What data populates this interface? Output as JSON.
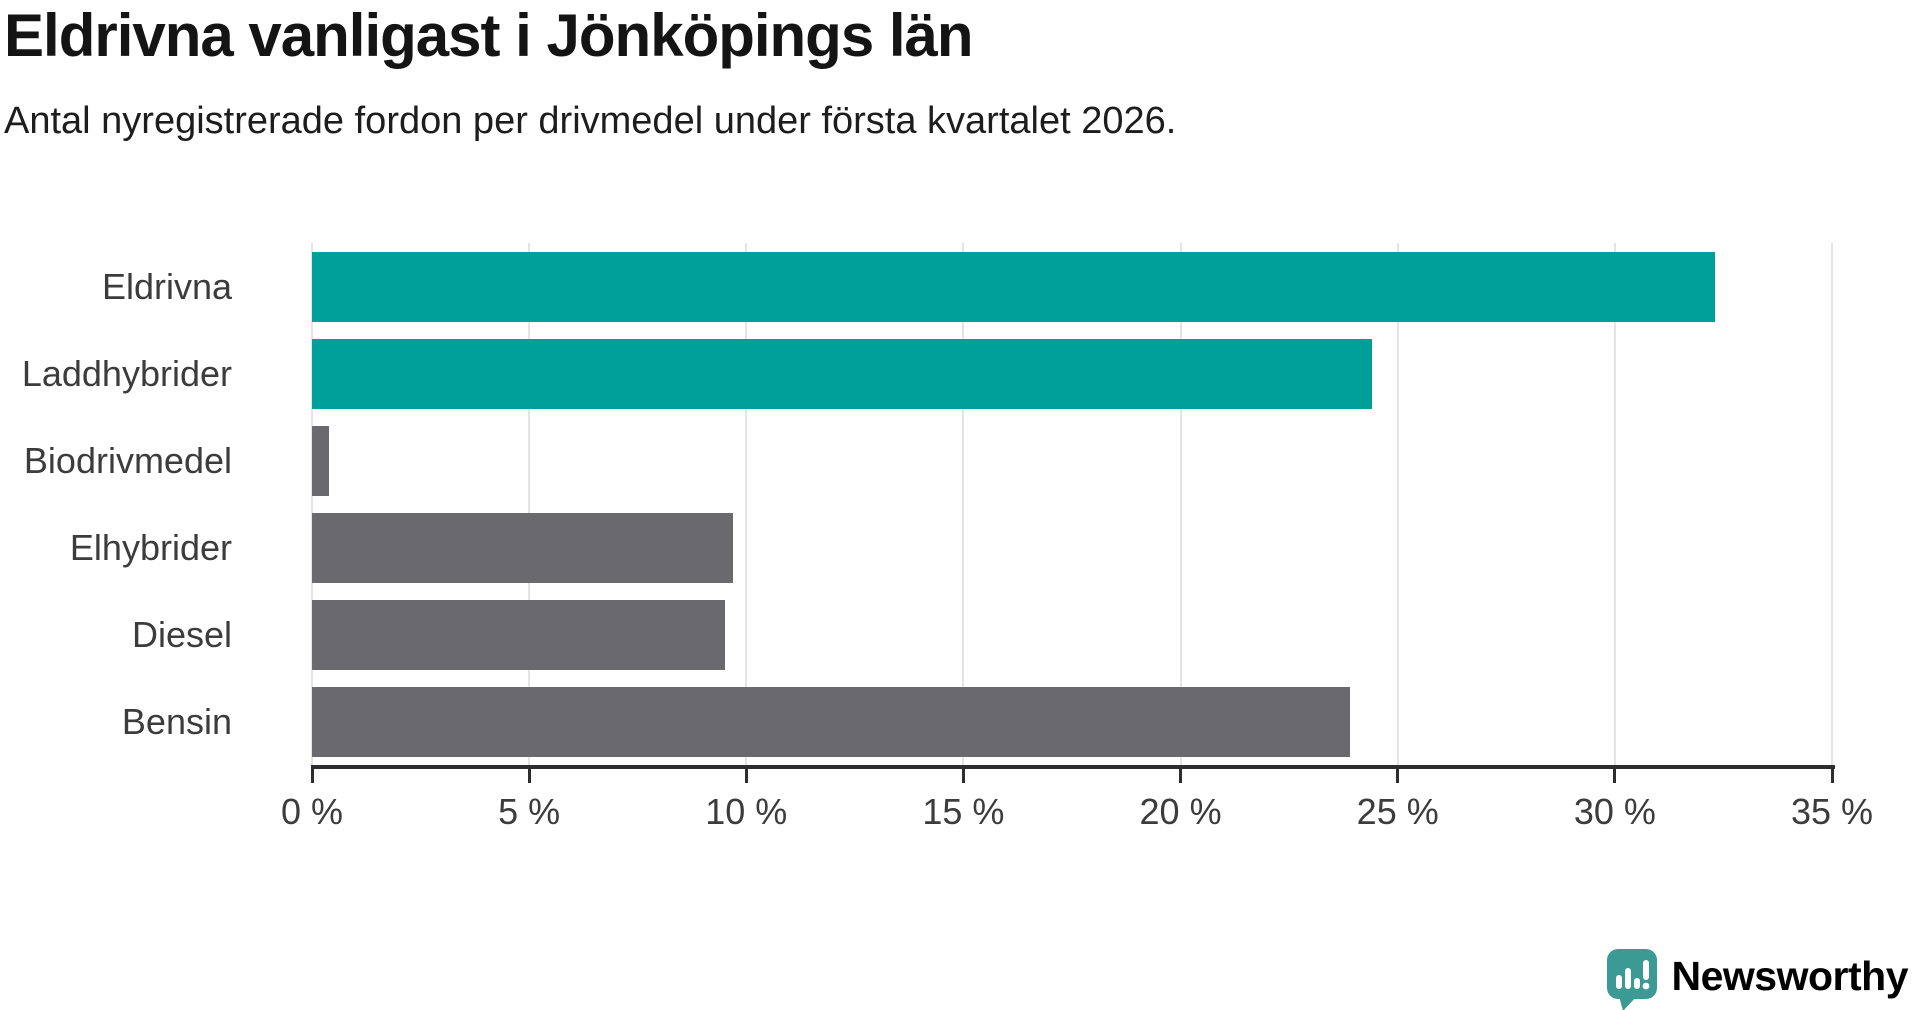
{
  "title": "Eldrivna vanligast i Jönköpings län",
  "subtitle": "Antal nyregistrerade fordon per drivmedel under första kvartalet 2026.",
  "chart_data": {
    "type": "bar",
    "orientation": "horizontal",
    "title": "Eldrivna vanligast i Jönköpings län",
    "subtitle": "Antal nyregistrerade fordon per drivmedel under första kvartalet 2026.",
    "categories": [
      "Eldrivna",
      "Laddhybrider",
      "Biodrivmedel",
      "Elhybrider",
      "Diesel",
      "Bensin"
    ],
    "values": [
      32.3,
      24.4,
      0.4,
      9.7,
      9.5,
      23.9
    ],
    "unit": "%",
    "xlim": [
      0,
      35
    ],
    "x_ticks": [
      "0 %",
      "5 %",
      "10 %",
      "15 %",
      "20 %",
      "25 %",
      "30 %",
      "35 %"
    ],
    "grid": true,
    "legend": false,
    "bar_colors": [
      "#00a09a",
      "#00a09a",
      "#6a6a6e",
      "#6a6a6e",
      "#6a6a6e",
      "#6a6a6e"
    ]
  },
  "colors": {
    "highlight_teal": "#00a09a",
    "neutral_gray": "#6a6a6e",
    "axis": "#2d2d2d",
    "gridline": "#e4e4e4",
    "label_text": "#3c3c3c",
    "logo_teal": "#3b9a93"
  },
  "branding": {
    "name": "Newsworthy",
    "icon": "speech-bubble-bar-chart"
  }
}
